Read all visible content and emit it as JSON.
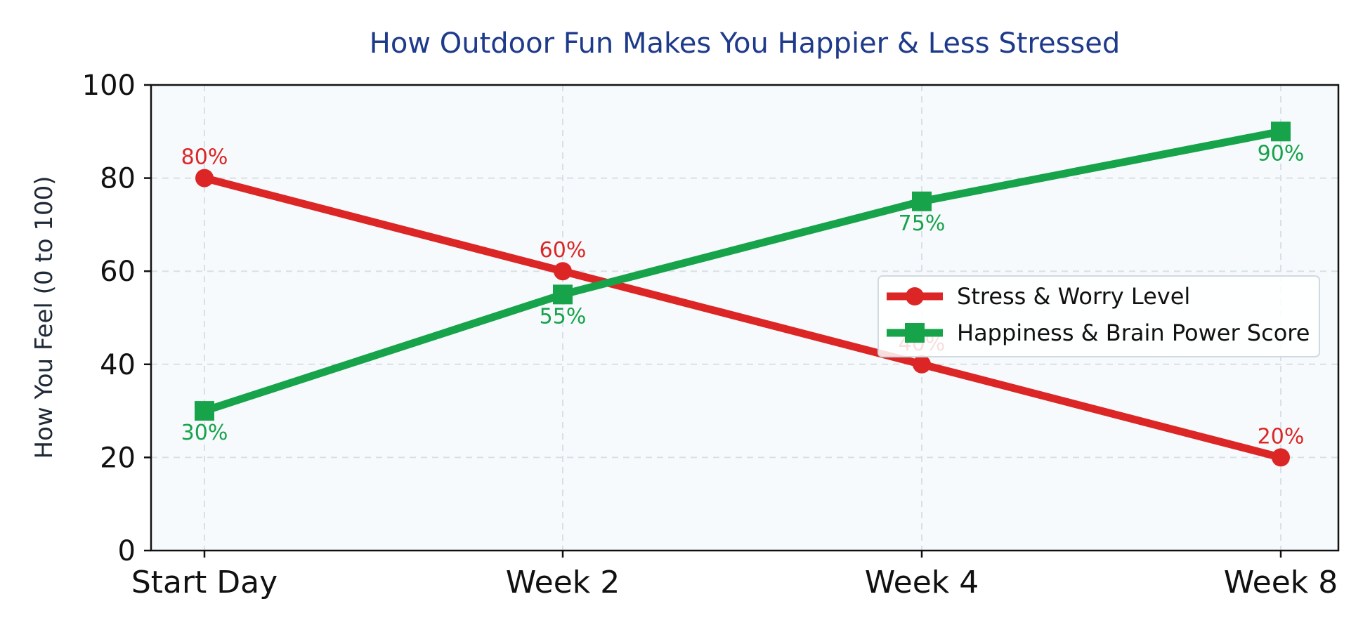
{
  "chart_data": {
    "type": "line",
    "title": "How Outdoor Fun Makes You Happier & Less Stressed",
    "xlabel": "",
    "ylabel": "How You Feel (0 to 100)",
    "categories": [
      "Start Day",
      "Week 2",
      "Week 4",
      "Week 8"
    ],
    "ylim": [
      0,
      100
    ],
    "yticks": [
      0,
      20,
      40,
      60,
      80,
      100
    ],
    "grid": true,
    "legend_position": "right",
    "series": [
      {
        "name": "Stress & Worry Level",
        "values": [
          80,
          60,
          40,
          20
        ],
        "labels": [
          "80%",
          "60%",
          "40%",
          "20%"
        ],
        "color": "#dc2626",
        "marker": "circle"
      },
      {
        "name": "Happiness & Brain Power Score",
        "values": [
          30,
          55,
          75,
          90
        ],
        "labels": [
          "30%",
          "55%",
          "75%",
          "90%"
        ],
        "color": "#16a34a",
        "marker": "square"
      }
    ],
    "plot_background": "#f7fafc"
  }
}
